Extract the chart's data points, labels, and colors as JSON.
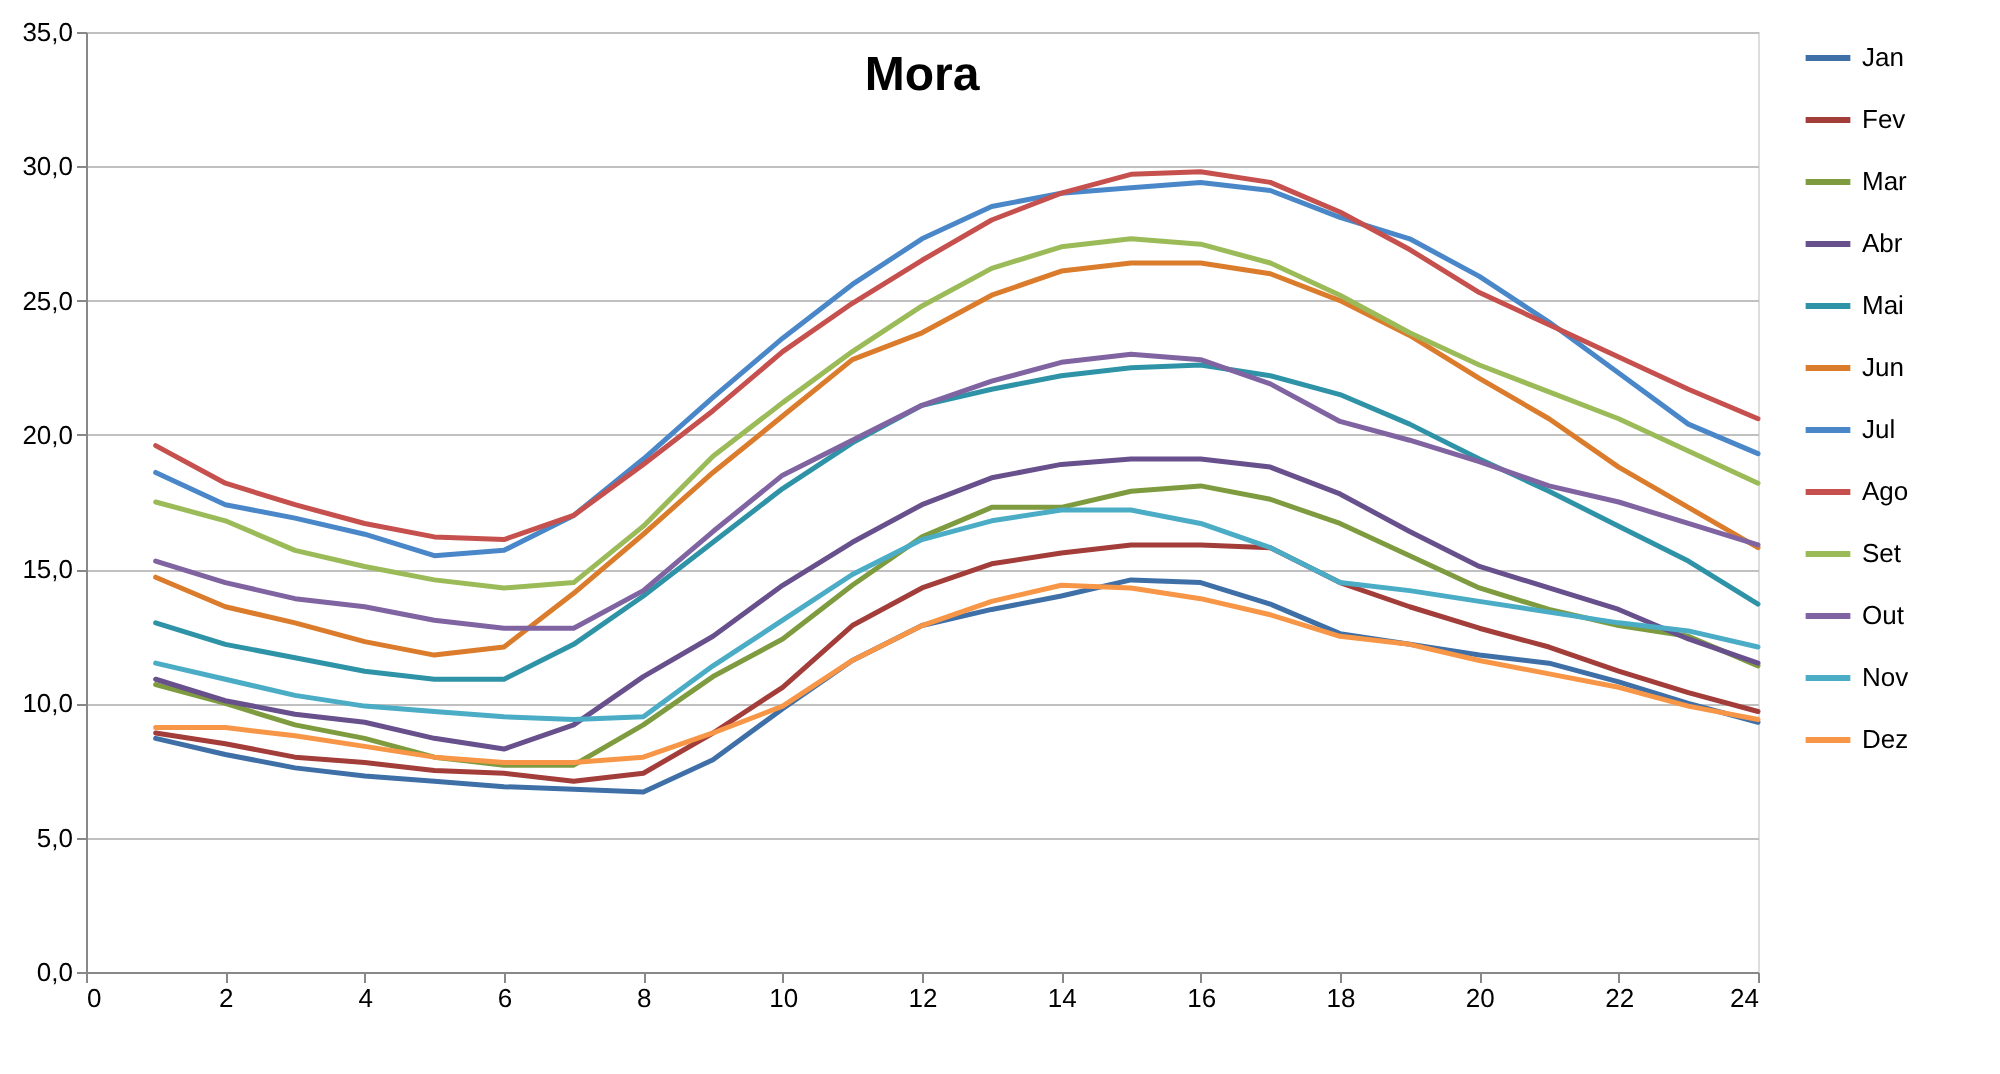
{
  "chart_data": {
    "type": "line",
    "title": "Mora",
    "x": [
      1,
      2,
      3,
      4,
      5,
      6,
      7,
      8,
      9,
      10,
      11,
      12,
      13,
      14,
      15,
      16,
      17,
      18,
      19,
      20,
      21,
      22,
      23,
      24
    ],
    "xlim": [
      0,
      24
    ],
    "xticks": [
      0,
      2,
      4,
      6,
      8,
      10,
      12,
      14,
      16,
      18,
      20,
      22,
      24
    ],
    "ylim": [
      0,
      35
    ],
    "yticks": [
      {
        "value": 0,
        "label": "0,0"
      },
      {
        "value": 5,
        "label": "5,0"
      },
      {
        "value": 10,
        "label": "10,0"
      },
      {
        "value": 15,
        "label": "15,0"
      },
      {
        "value": 20,
        "label": "20,0"
      },
      {
        "value": 25,
        "label": "25,0"
      },
      {
        "value": 30,
        "label": "30,0"
      },
      {
        "value": 35,
        "label": "35,0"
      }
    ],
    "grid": "y",
    "legend": "right",
    "marker": "none",
    "line_style": "solid",
    "series": [
      {
        "name": "Jan",
        "color": "#3f6fa7",
        "values": [
          8.7,
          8.1,
          7.6,
          7.3,
          7.1,
          6.9,
          6.8,
          6.7,
          7.9,
          9.8,
          11.6,
          12.9,
          13.5,
          14.0,
          14.6,
          14.5,
          13.7,
          12.6,
          12.2,
          11.8,
          11.5,
          10.8,
          10.0,
          9.3
        ]
      },
      {
        "name": "Fev",
        "color": "#a33d3a",
        "values": [
          8.9,
          8.5,
          8.0,
          7.8,
          7.5,
          7.4,
          7.1,
          7.4,
          8.9,
          10.6,
          12.9,
          14.3,
          15.2,
          15.6,
          15.9,
          15.9,
          15.8,
          14.5,
          13.6,
          12.8,
          12.1,
          11.2,
          10.4,
          9.7
        ]
      },
      {
        "name": "Mar",
        "color": "#7e9c3f",
        "values": [
          10.7,
          10.0,
          9.2,
          8.7,
          8.0,
          7.7,
          7.7,
          9.2,
          11.0,
          12.4,
          14.4,
          16.2,
          17.3,
          17.3,
          17.9,
          18.1,
          17.6,
          16.7,
          15.5,
          14.3,
          13.5,
          12.9,
          12.5,
          11.4
        ]
      },
      {
        "name": "Abr",
        "color": "#67508c",
        "values": [
          10.9,
          10.1,
          9.6,
          9.3,
          8.7,
          8.3,
          9.2,
          11.0,
          12.5,
          14.4,
          16.0,
          17.4,
          18.4,
          18.9,
          19.1,
          19.1,
          18.8,
          17.8,
          16.4,
          15.1,
          14.3,
          13.5,
          12.4,
          11.5
        ]
      },
      {
        "name": "Mai",
        "color": "#2f93a8",
        "values": [
          13.0,
          12.2,
          11.7,
          11.2,
          10.9,
          10.9,
          12.2,
          14.0,
          16.0,
          18.0,
          19.7,
          21.1,
          21.7,
          22.2,
          22.5,
          22.6,
          22.2,
          21.5,
          20.4,
          19.1,
          17.9,
          16.6,
          15.3,
          13.7
        ]
      },
      {
        "name": "Jun",
        "color": "#db7c2c",
        "values": [
          14.7,
          13.6,
          13.0,
          12.3,
          11.8,
          12.1,
          14.1,
          16.3,
          18.6,
          20.7,
          22.8,
          23.8,
          25.2,
          26.1,
          26.4,
          26.4,
          26.0,
          25.0,
          23.7,
          22.1,
          20.6,
          18.8,
          17.3,
          15.8
        ]
      },
      {
        "name": "Jul",
        "color": "#4a87c9",
        "values": [
          18.6,
          17.4,
          16.9,
          16.3,
          15.5,
          15.7,
          17.0,
          19.1,
          21.4,
          23.6,
          25.6,
          27.3,
          28.5,
          29.0,
          29.2,
          29.4,
          29.1,
          28.1,
          27.3,
          25.9,
          24.2,
          22.3,
          20.4,
          19.3
        ]
      },
      {
        "name": "Ago",
        "color": "#c6504d",
        "values": [
          19.6,
          18.2,
          17.4,
          16.7,
          16.2,
          16.1,
          17.0,
          18.9,
          20.9,
          23.1,
          24.9,
          26.5,
          28.0,
          29.0,
          29.7,
          29.8,
          29.4,
          28.3,
          26.9,
          25.3,
          24.1,
          22.9,
          21.7,
          20.6
        ]
      },
      {
        "name": "Set",
        "color": "#9bbb59",
        "values": [
          17.5,
          16.8,
          15.7,
          15.1,
          14.6,
          14.3,
          14.5,
          16.6,
          19.2,
          21.2,
          23.1,
          24.8,
          26.2,
          27.0,
          27.3,
          27.1,
          26.4,
          25.2,
          23.8,
          22.6,
          21.6,
          20.6,
          19.4,
          18.2
        ]
      },
      {
        "name": "Out",
        "color": "#8064a2",
        "values": [
          15.3,
          14.5,
          13.9,
          13.6,
          13.1,
          12.8,
          12.8,
          14.2,
          16.4,
          18.5,
          19.8,
          21.1,
          22.0,
          22.7,
          23.0,
          22.8,
          21.9,
          20.5,
          19.8,
          19.0,
          18.1,
          17.5,
          16.7,
          15.9
        ]
      },
      {
        "name": "Nov",
        "color": "#4bacc6",
        "values": [
          11.5,
          10.9,
          10.3,
          9.9,
          9.7,
          9.5,
          9.4,
          9.5,
          11.4,
          13.1,
          14.8,
          16.1,
          16.8,
          17.2,
          17.2,
          16.7,
          15.8,
          14.5,
          14.2,
          13.8,
          13.4,
          13.0,
          12.7,
          12.1
        ]
      },
      {
        "name": "Dez",
        "color": "#f79646",
        "values": [
          9.1,
          9.1,
          8.8,
          8.4,
          8.0,
          7.8,
          7.8,
          8.0,
          8.9,
          9.9,
          11.6,
          12.9,
          13.8,
          14.4,
          14.3,
          13.9,
          13.3,
          12.5,
          12.2,
          11.6,
          11.1,
          10.6,
          9.9,
          9.4
        ]
      }
    ]
  }
}
